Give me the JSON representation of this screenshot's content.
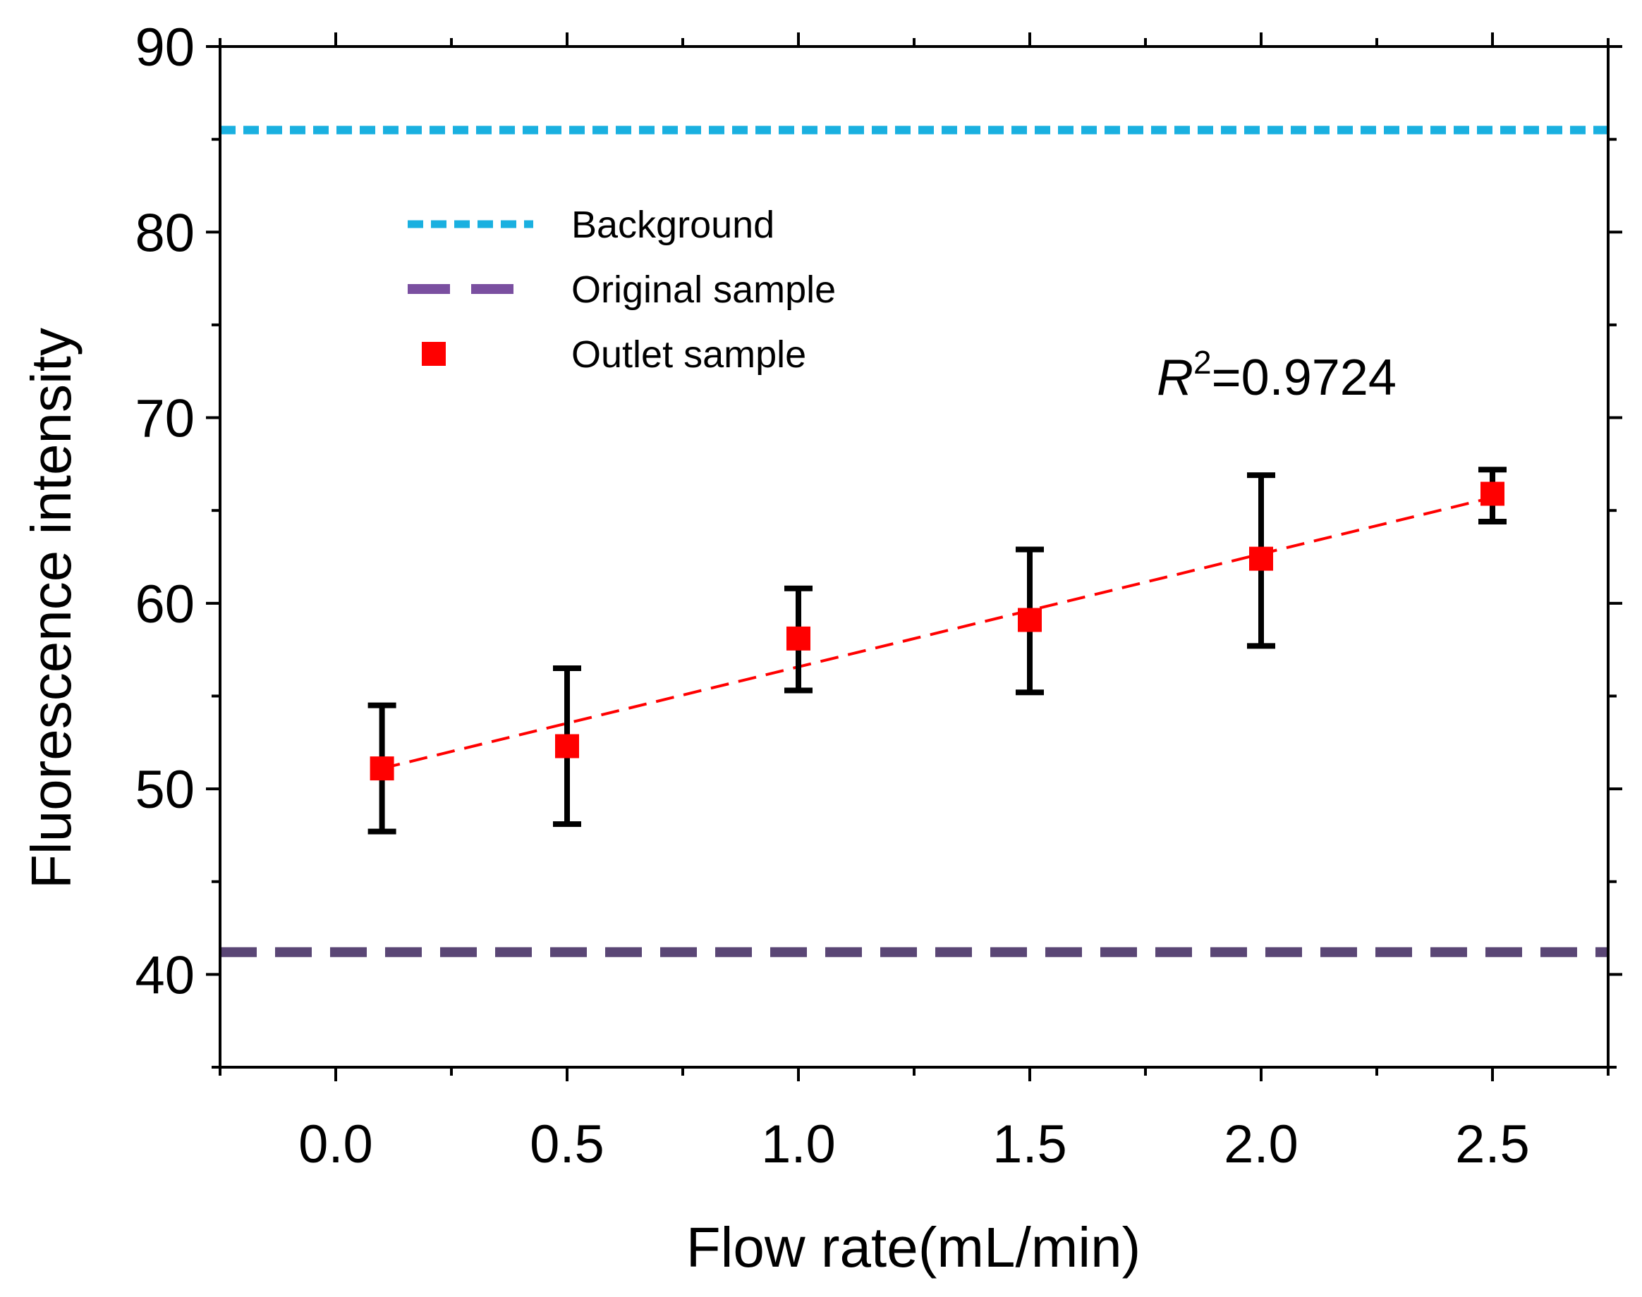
{
  "chart_data": {
    "type": "scatter",
    "title": "",
    "xlabel": "Flow rate(mL/min)",
    "ylabel": "Fluorescence intensity",
    "xlim": [
      -0.25,
      2.75
    ],
    "ylim": [
      35,
      90
    ],
    "xticks": [
      0.0,
      0.5,
      1.0,
      1.5,
      2.0,
      2.5
    ],
    "xtick_labels": [
      "0.0",
      "0.5",
      "1.0",
      "1.5",
      "2.0",
      "2.5"
    ],
    "yticks": [
      40,
      50,
      60,
      70,
      80,
      90
    ],
    "ytick_labels": [
      "40",
      "50",
      "60",
      "70",
      "80",
      "90"
    ],
    "series": [
      {
        "name": "Outlet sample",
        "marker": "square",
        "color": "#ff0000",
        "x": [
          0.1,
          0.5,
          1.0,
          1.5,
          2.0,
          2.5
        ],
        "y": [
          51.1,
          52.3,
          58.1,
          59.1,
          62.4,
          65.9
        ],
        "err_low": [
          47.7,
          48.1,
          55.3,
          55.2,
          57.7,
          64.4
        ],
        "err_high": [
          54.5,
          56.5,
          60.8,
          62.9,
          66.9,
          67.2
        ]
      }
    ],
    "reference_lines": [
      {
        "name": "Background",
        "y": 85.5,
        "color": "#1ab0e0",
        "style": "dotted"
      },
      {
        "name": "Original sample",
        "y": 41.2,
        "color": "#5a4675",
        "style": "dashed"
      }
    ],
    "fit_line": {
      "x": [
        0.1,
        2.5
      ],
      "y": [
        51.1,
        65.7
      ],
      "color": "#ff0000",
      "style": "dashed"
    },
    "legend": {
      "placement": "upper-left",
      "entries": [
        {
          "label": "Background",
          "color": "#1ab0e0",
          "style": "dotted"
        },
        {
          "label": "Original sample",
          "color": "#7a4fa0",
          "style": "dashed"
        },
        {
          "label": "Outlet sample",
          "color": "#ff0000",
          "style": "square"
        }
      ]
    },
    "annotation": {
      "prefix": "R",
      "superscript": "2",
      "value": "=0.9724"
    }
  }
}
